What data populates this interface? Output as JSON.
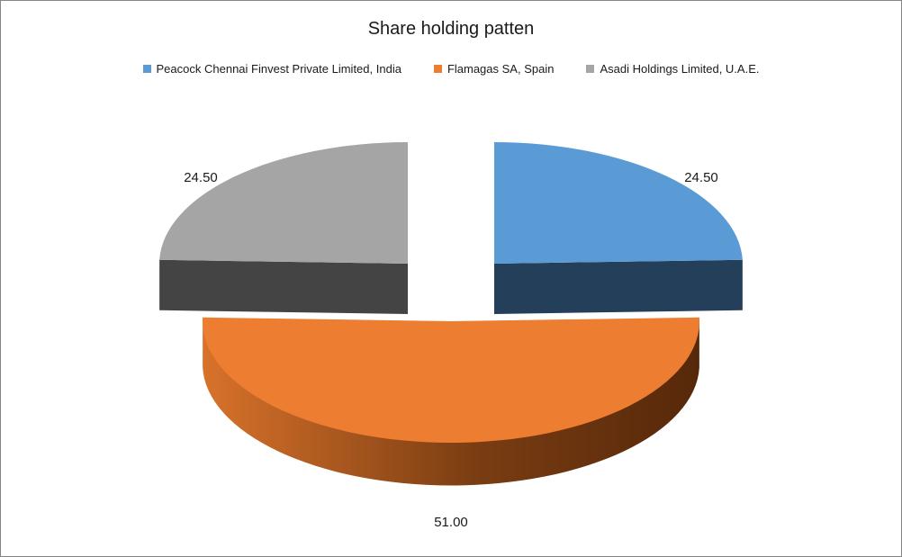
{
  "chart_data": {
    "type": "pie",
    "title": "Share holding patten",
    "legend_position": "top",
    "slices": [
      {
        "name": "Peacock Chennai Finvest Private Limited, India",
        "value": 24.5,
        "label": "24.50",
        "color": "#5b9bd5",
        "side_color": "#243f5a"
      },
      {
        "name": "Flamagas SA, Spain",
        "value": 51.0,
        "label": "51.00",
        "color": "#ed7d31",
        "side_color": "#7a3d12"
      },
      {
        "name": "Asadi Holdings Limited, U.A.E.",
        "value": 24.5,
        "label": "24.50",
        "color": "#a5a5a5",
        "side_color": "#444444"
      }
    ]
  }
}
